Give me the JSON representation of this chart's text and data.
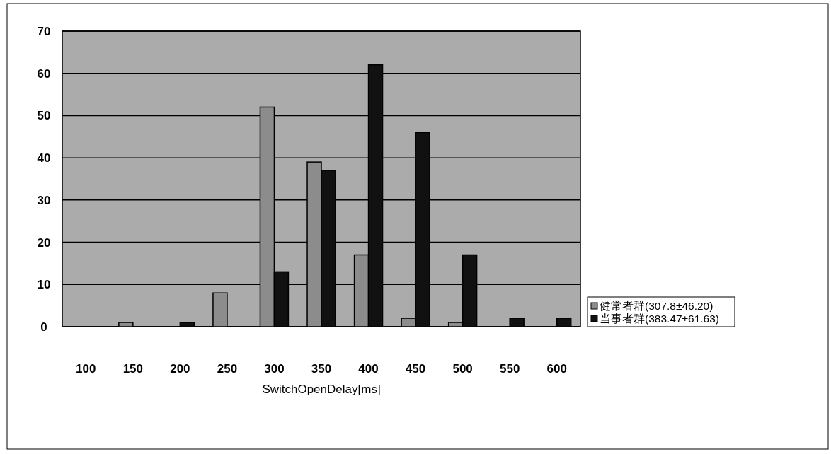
{
  "chart_data": {
    "type": "bar",
    "xlabel": "SwitchOpenDelay[ms]",
    "categories": [
      "100",
      "150",
      "200",
      "250",
      "300",
      "350",
      "400",
      "450",
      "500",
      "550",
      "600"
    ],
    "series": [
      {
        "name": "健常者群(307.8±46.20)",
        "color": "#8c8c8c",
        "values": [
          0,
          1,
          0,
          8,
          52,
          39,
          17,
          2,
          1,
          0,
          0
        ]
      },
      {
        "name": "当事者群(383.47±61.63)",
        "color": "#111111",
        "values": [
          0,
          0,
          1,
          0,
          13,
          37,
          62,
          46,
          17,
          2,
          2
        ]
      }
    ],
    "ylim": [
      0,
      70
    ],
    "yticks": [
      0,
      10,
      20,
      30,
      40,
      50,
      60,
      70
    ],
    "grid": "y",
    "legend": "right"
  }
}
